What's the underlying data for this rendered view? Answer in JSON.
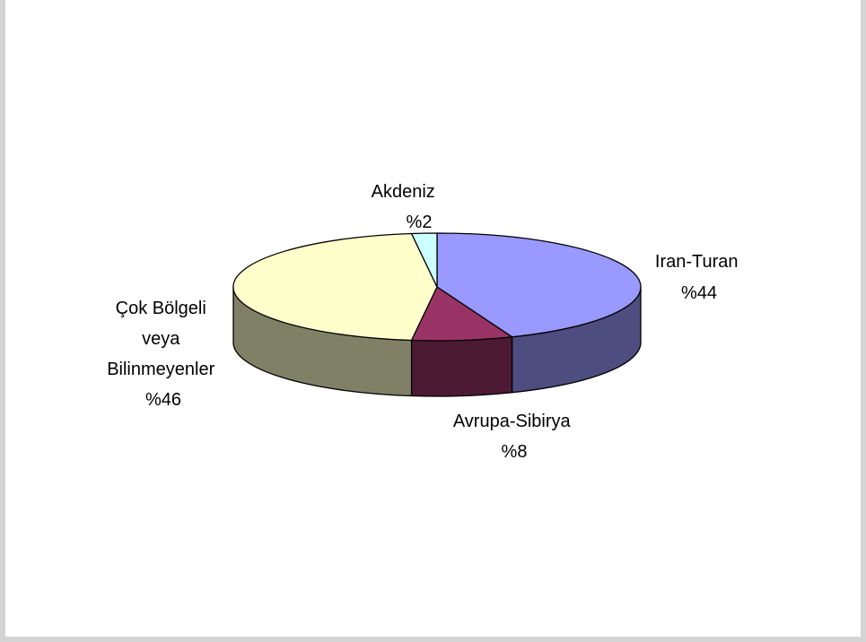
{
  "chart_data": {
    "type": "pie",
    "title": "",
    "three_d": true,
    "slices": [
      {
        "name": "Iran-Turan",
        "value": 44,
        "value_label": "%44",
        "color": "#9999ff",
        "side_color": "#4d4d80"
      },
      {
        "name": "Avrupa-Sibirya",
        "value": 8,
        "value_label": "%8",
        "color": "#993366",
        "side_color": "#4d1a33"
      },
      {
        "name": "Çok Bölgeli veya Bilinmeyenler",
        "value": 46,
        "value_label": "%46",
        "color": "#ffffcc",
        "side_color": "#808066"
      },
      {
        "name": "Akdeniz",
        "value": 2,
        "value_label": "%2",
        "color": "#ccffff",
        "side_color": "#668080"
      }
    ],
    "labels": {
      "iran": [
        "Iran-Turan",
        "%44"
      ],
      "avrupa": [
        "Avrupa-Sibirya",
        "%8"
      ],
      "cok": [
        "Çok Bölgeli",
        "veya",
        "Bilinmeyenler",
        "%46"
      ],
      "akdeniz": [
        "Akdeniz",
        "%2"
      ]
    },
    "legend": "none"
  }
}
